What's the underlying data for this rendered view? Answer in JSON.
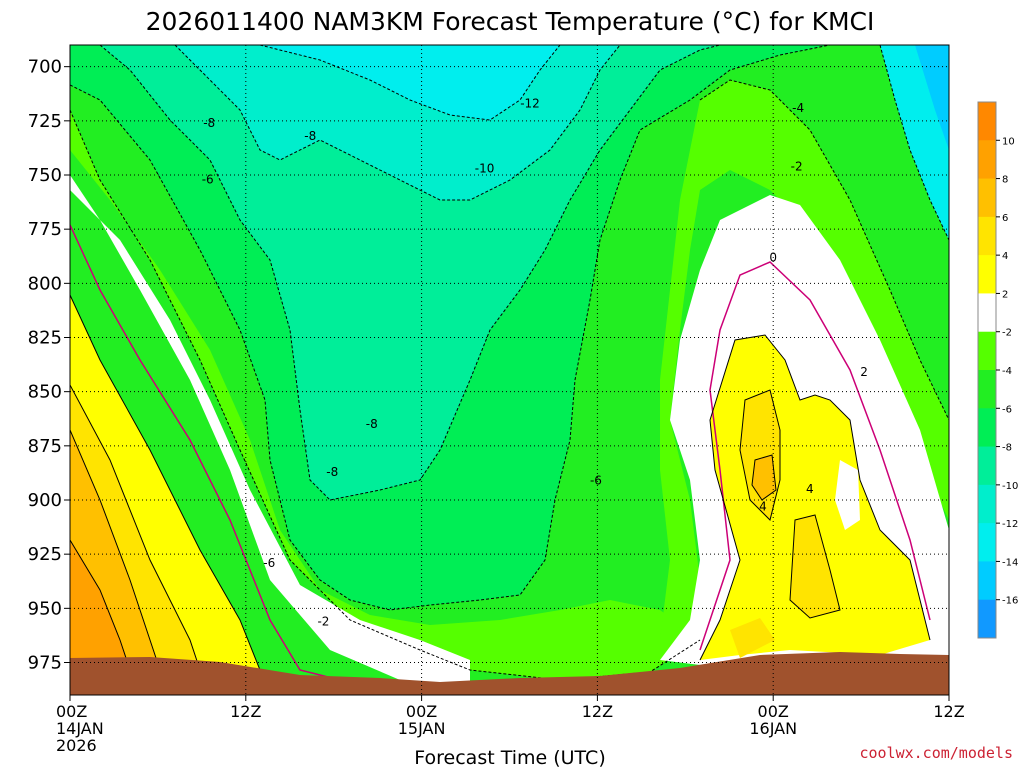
{
  "chart_data": {
    "type": "heatmap",
    "title": "2026011400 NAM3KM Forecast Temperature (°C) for KMCI",
    "xlabel": "Forecast Time (UTC)",
    "x_ticks": [
      {
        "hours": 0,
        "lines": [
          "00Z",
          "14JAN",
          "2026"
        ]
      },
      {
        "hours": 12,
        "lines": [
          "12Z"
        ]
      },
      {
        "hours": 24,
        "lines": [
          "00Z",
          "15JAN"
        ]
      },
      {
        "hours": 36,
        "lines": [
          "12Z"
        ]
      },
      {
        "hours": 48,
        "lines": [
          "00Z",
          "16JAN"
        ]
      },
      {
        "hours": 60,
        "lines": [
          "12Z"
        ]
      }
    ],
    "xlim": [
      0,
      60
    ],
    "ylim": [
      990,
      690
    ],
    "y_ticks": [
      "700",
      "725",
      "750",
      "775",
      "800",
      "825",
      "850",
      "875",
      "900",
      "925",
      "950",
      "975"
    ],
    "grid": true,
    "colorbar": {
      "ticks": [
        "10",
        "8",
        "6",
        "4",
        "2",
        "-2",
        "-4",
        "-6",
        "-8",
        "-10",
        "-12",
        "-14",
        "-16"
      ],
      "bands": [
        {
          "lo": 10,
          "hi": 12,
          "color": "#ff8800"
        },
        {
          "lo": 8,
          "hi": 10,
          "color": "#ffa100"
        },
        {
          "lo": 6,
          "hi": 8,
          "color": "#ffc000"
        },
        {
          "lo": 4,
          "hi": 6,
          "color": "#ffe400"
        },
        {
          "lo": 2,
          "hi": 4,
          "color": "#ffff00"
        },
        {
          "lo": -2,
          "hi": 2,
          "color": "#ffffff"
        },
        {
          "lo": -4,
          "hi": -2,
          "color": "#55ff00"
        },
        {
          "lo": -6,
          "hi": -4,
          "color": "#22ee22"
        },
        {
          "lo": -8,
          "hi": -6,
          "color": "#00ee55"
        },
        {
          "lo": -10,
          "hi": -8,
          "color": "#00ee99"
        },
        {
          "lo": -12,
          "hi": -10,
          "color": "#00eecc"
        },
        {
          "lo": -14,
          "hi": -12,
          "color": "#00eeee"
        },
        {
          "lo": -16,
          "hi": -14,
          "color": "#00ccff"
        },
        {
          "lo": -18,
          "hi": -16,
          "color": "#1199ff"
        }
      ]
    },
    "contour_labels": [
      {
        "text": "-12",
        "hours": 31.4,
        "pressure": 717
      },
      {
        "text": "-8",
        "hours": 9.5,
        "pressure": 726
      },
      {
        "text": "-8",
        "hours": 16.4,
        "pressure": 732
      },
      {
        "text": "-6",
        "hours": 9.4,
        "pressure": 752
      },
      {
        "text": "-10",
        "hours": 28.3,
        "pressure": 747
      },
      {
        "text": "-4",
        "hours": 49.7,
        "pressure": 719
      },
      {
        "text": "-2",
        "hours": 49.6,
        "pressure": 746
      },
      {
        "text": "0",
        "hours": 48.0,
        "pressure": 788
      },
      {
        "text": "2",
        "hours": 54.2,
        "pressure": 841
      },
      {
        "text": "-8",
        "hours": 20.6,
        "pressure": 865
      },
      {
        "text": "-8",
        "hours": 17.9,
        "pressure": 887
      },
      {
        "text": "-6",
        "hours": 35.9,
        "pressure": 891
      },
      {
        "text": "-6",
        "hours": 13.6,
        "pressure": 929
      },
      {
        "text": "-2",
        "hours": 17.3,
        "pressure": 956
      },
      {
        "text": "4",
        "hours": 47.3,
        "pressure": 903
      },
      {
        "text": "4",
        "hours": 50.5,
        "pressure": 895
      }
    ],
    "terrain_color": "#a0522d"
  },
  "credit": "coolwx.com/models"
}
